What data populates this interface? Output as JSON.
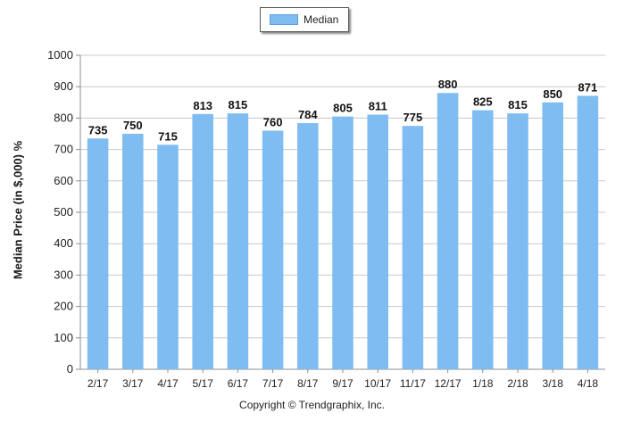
{
  "chart_data": {
    "type": "bar",
    "categories": [
      "2/17",
      "3/17",
      "4/17",
      "5/17",
      "6/17",
      "7/17",
      "8/17",
      "9/17",
      "10/17",
      "11/17",
      "12/17",
      "1/18",
      "2/18",
      "3/18",
      "4/18"
    ],
    "series": [
      {
        "name": "Median",
        "values": [
          735,
          750,
          715,
          813,
          815,
          760,
          784,
          805,
          811,
          775,
          880,
          825,
          815,
          850,
          871
        ]
      }
    ],
    "title": "",
    "xlabel": "",
    "ylabel": "Median Price (in $,000) %",
    "ylim": [
      0,
      1000
    ],
    "yticks": [
      0,
      100,
      200,
      300,
      400,
      500,
      600,
      700,
      800,
      900,
      1000
    ],
    "grid": true,
    "legend_position": "top-center",
    "colors": {
      "bar": "#7fbcf2",
      "grid": "#c8c8c8",
      "axis": "#8c8c8c"
    }
  },
  "footer": {
    "copyright": "Copyright © Trendgraphix, Inc."
  }
}
